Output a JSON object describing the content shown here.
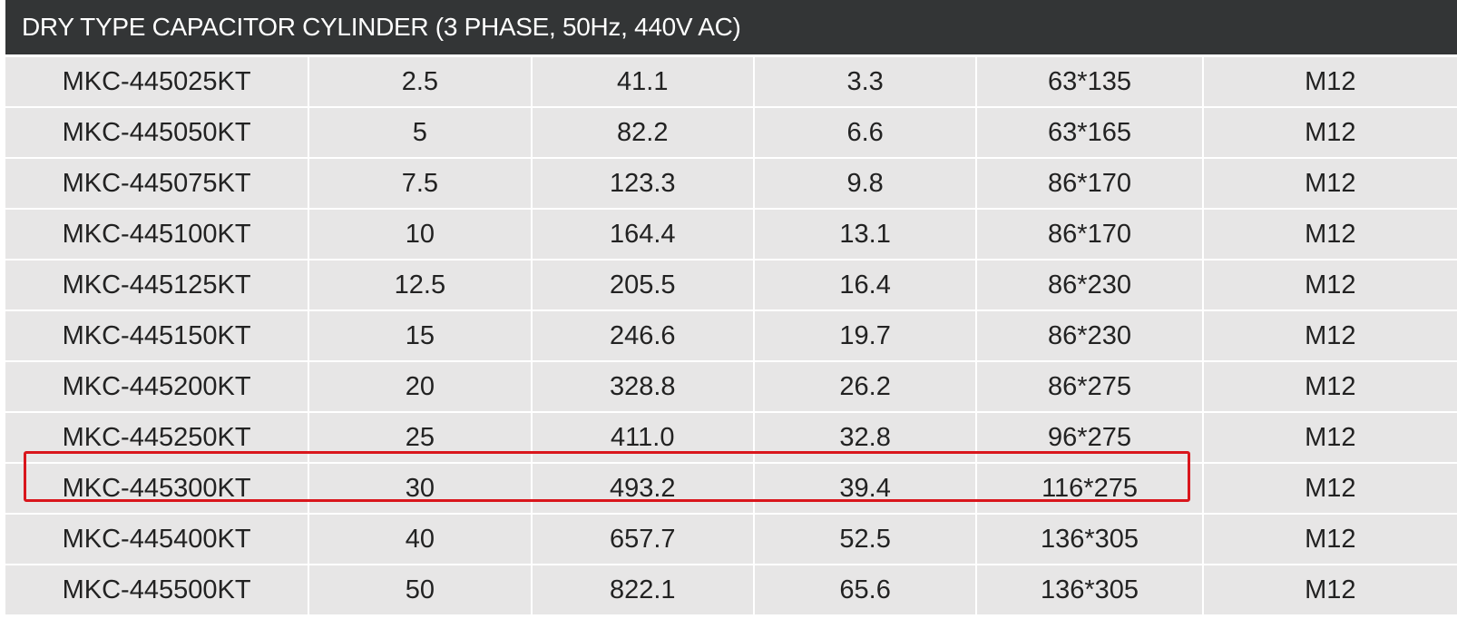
{
  "title": "DRY TYPE CAPACITOR CYLINDER (3 PHASE, 50Hz, 440V AC)",
  "rows": [
    [
      "MKC-445025KT",
      "2.5",
      "41.1",
      "3.3",
      "63*135",
      "M12"
    ],
    [
      "MKC-445050KT",
      "5",
      "82.2",
      "6.6",
      "63*165",
      "M12"
    ],
    [
      "MKC-445075KT",
      "7.5",
      "123.3",
      "9.8",
      "86*170",
      "M12"
    ],
    [
      "MKC-445100KT",
      "10",
      "164.4",
      "13.1",
      "86*170",
      "M12"
    ],
    [
      "MKC-445125KT",
      "12.5",
      "205.5",
      "16.4",
      "86*230",
      "M12"
    ],
    [
      "MKC-445150KT",
      "15",
      "246.6",
      "19.7",
      "86*230",
      "M12"
    ],
    [
      "MKC-445200KT",
      "20",
      "328.8",
      "26.2",
      "86*275",
      "M12"
    ],
    [
      "MKC-445250KT",
      "25",
      "411.0",
      "32.8",
      "96*275",
      "M12"
    ],
    [
      "MKC-445300KT",
      "30",
      "493.2",
      "39.4",
      "116*275",
      "M12"
    ],
    [
      "MKC-445400KT",
      "40",
      "657.7",
      "52.5",
      "136*305",
      "M12"
    ],
    [
      "MKC-445500KT",
      "50",
      "822.1",
      "65.6",
      "136*305",
      "M12"
    ]
  ],
  "highlighted_row": 8,
  "colors": {
    "title_bg": "#333536",
    "cell_bg": "#e7e6e6",
    "highlight": "#d9161c"
  }
}
